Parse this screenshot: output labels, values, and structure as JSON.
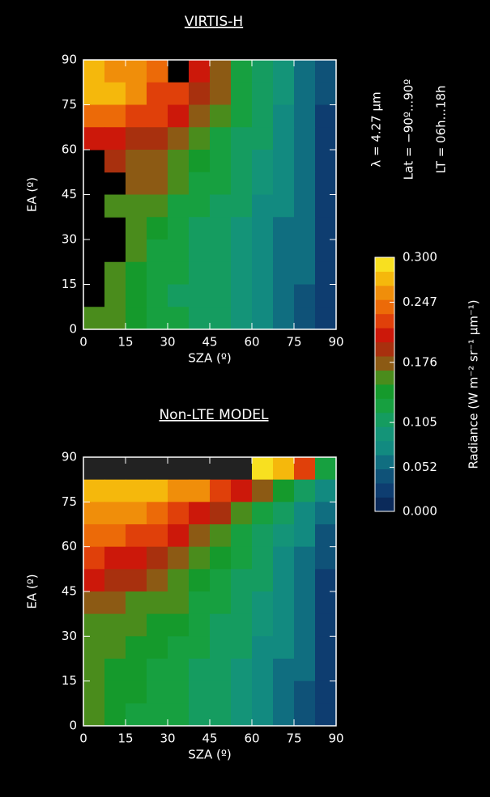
{
  "chart_data": [
    {
      "type": "heatmap",
      "title": "VIRTIS-H",
      "xlabel": "SZA (º)",
      "ylabel": "EA (º)",
      "xlim": [
        0,
        90
      ],
      "ylim": [
        0,
        90
      ],
      "xticks": [
        0,
        15,
        30,
        45,
        60,
        75,
        90
      ],
      "yticks": [
        0,
        15,
        30,
        45,
        60,
        75,
        90
      ],
      "missing_color": "#000000",
      "values": [
        [
          0.27,
          0.26,
          0.25,
          0.24,
          null,
          0.2,
          0.17,
          0.13,
          0.1,
          0.09,
          0.06,
          0.04
        ],
        [
          0.28,
          0.27,
          0.25,
          0.23,
          0.22,
          0.19,
          0.17,
          0.13,
          0.11,
          0.09,
          0.06,
          0.04
        ],
        [
          0.24,
          0.24,
          0.23,
          0.22,
          0.2,
          0.18,
          0.15,
          0.12,
          0.1,
          0.08,
          0.06,
          0.03
        ],
        [
          0.2,
          0.2,
          0.19,
          0.19,
          0.18,
          0.16,
          0.13,
          0.11,
          0.1,
          0.08,
          0.05,
          0.03
        ],
        [
          null,
          0.19,
          0.18,
          0.18,
          0.16,
          0.14,
          0.12,
          0.11,
          0.09,
          0.07,
          0.05,
          0.03
        ],
        [
          null,
          null,
          0.18,
          0.17,
          0.15,
          0.13,
          0.12,
          0.1,
          0.09,
          0.07,
          0.05,
          0.03
        ],
        [
          null,
          0.15,
          0.16,
          0.15,
          0.13,
          0.12,
          0.11,
          0.1,
          0.08,
          0.07,
          0.05,
          0.03
        ],
        [
          null,
          null,
          0.15,
          0.14,
          0.12,
          0.11,
          0.1,
          0.09,
          0.08,
          0.06,
          0.05,
          0.03
        ],
        [
          null,
          null,
          0.15,
          0.13,
          0.12,
          0.11,
          0.1,
          0.09,
          0.08,
          0.06,
          0.05,
          0.03
        ],
        [
          null,
          0.15,
          0.14,
          0.13,
          0.12,
          0.11,
          0.1,
          0.09,
          0.08,
          0.06,
          0.05,
          0.03
        ],
        [
          null,
          0.15,
          0.14,
          0.13,
          0.11,
          0.11,
          0.1,
          0.09,
          0.07,
          0.06,
          0.04,
          0.03
        ],
        [
          0.15,
          0.15,
          0.14,
          0.13,
          0.12,
          0.11,
          0.1,
          0.09,
          0.07,
          0.06,
          0.04,
          0.03
        ]
      ]
    },
    {
      "type": "heatmap",
      "title": "Non-LTE MODEL",
      "xlabel": "SZA (º)",
      "ylabel": "EA (º)",
      "xlim": [
        0,
        90
      ],
      "ylim": [
        0,
        90
      ],
      "xticks": [
        0,
        15,
        30,
        45,
        60,
        75,
        90
      ],
      "yticks": [
        0,
        15,
        30,
        45,
        60,
        75,
        90
      ],
      "missing_color": "#222222",
      "values": [
        [
          null,
          null,
          null,
          null,
          null,
          null,
          null,
          null,
          0.29,
          0.27,
          0.22,
          0.12
        ],
        [
          0.28,
          0.28,
          0.27,
          0.27,
          0.26,
          0.25,
          0.23,
          0.2,
          0.17,
          0.14,
          0.11,
          0.08
        ],
        [
          0.26,
          0.26,
          0.25,
          0.24,
          0.23,
          0.21,
          0.19,
          0.16,
          0.13,
          0.1,
          0.08,
          0.05
        ],
        [
          0.24,
          0.24,
          0.23,
          0.22,
          0.2,
          0.18,
          0.16,
          0.13,
          0.11,
          0.09,
          0.07,
          0.04
        ],
        [
          0.22,
          0.21,
          0.2,
          0.19,
          0.18,
          0.16,
          0.14,
          0.12,
          0.1,
          0.08,
          0.06,
          0.04
        ],
        [
          0.2,
          0.19,
          0.19,
          0.18,
          0.16,
          0.14,
          0.13,
          0.11,
          0.1,
          0.08,
          0.06,
          0.03
        ],
        [
          0.17,
          0.17,
          0.16,
          0.16,
          0.15,
          0.13,
          0.12,
          0.1,
          0.09,
          0.07,
          0.05,
          0.03
        ],
        [
          0.15,
          0.15,
          0.15,
          0.14,
          0.14,
          0.12,
          0.11,
          0.1,
          0.09,
          0.07,
          0.05,
          0.03
        ],
        [
          0.15,
          0.15,
          0.14,
          0.14,
          0.13,
          0.12,
          0.11,
          0.1,
          0.08,
          0.07,
          0.05,
          0.03
        ],
        [
          0.15,
          0.14,
          0.14,
          0.13,
          0.12,
          0.11,
          0.1,
          0.09,
          0.08,
          0.06,
          0.05,
          0.02
        ],
        [
          0.15,
          0.14,
          0.14,
          0.13,
          0.12,
          0.11,
          0.1,
          0.09,
          0.08,
          0.06,
          0.04,
          0.02
        ],
        [
          0.15,
          0.14,
          0.13,
          0.13,
          0.12,
          0.11,
          0.1,
          0.09,
          0.07,
          0.06,
          0.04,
          0.02
        ]
      ]
    }
  ],
  "colorbar": {
    "label": "Radiance (W m⁻² sr⁻¹ μm⁻¹)",
    "ylim": [
      0,
      0.3
    ],
    "yticks": [
      {
        "value": 0,
        "label": "0.000"
      },
      0.052,
      0.105,
      0.176,
      0.247,
      {
        "value": 0.3,
        "label": "0.300"
      }
    ],
    "colors": [
      "#0b2a5a",
      "#0e3d70",
      "#0f5278",
      "#106e80",
      "#128a80",
      "#149478",
      "#159c60",
      "#17a040",
      "#159a2c",
      "#4a8c1c",
      "#8c5a14",
      "#a8300e",
      "#cc180a",
      "#e0400a",
      "#ec6a08",
      "#f08e0a",
      "#f5b80c",
      "#f8e020"
    ]
  },
  "annotations": [
    "λ = 4.27 μm",
    "Lat = −90º...90º",
    "LT = 06h...18h"
  ]
}
